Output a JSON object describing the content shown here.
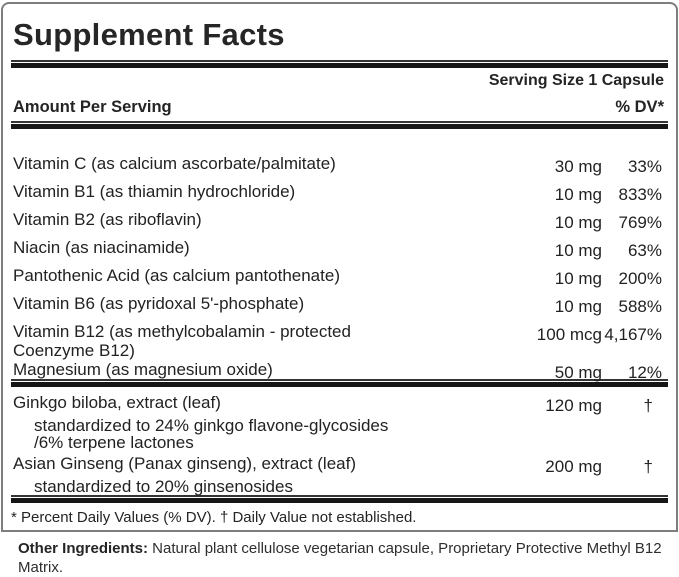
{
  "panel": {
    "title": "Supplement Facts",
    "serving_size": "Serving Size 1 Capsule",
    "amount_header": "Amount Per Serving",
    "dv_header": "% DV*",
    "rows": [
      {
        "name": "Vitamin C (as calcium ascorbate/palmitate)",
        "amount": "30 mg",
        "dv": "33%"
      },
      {
        "name": "Vitamin B1 (as thiamin hydrochloride)",
        "amount": "10 mg",
        "dv": "833%"
      },
      {
        "name": "Vitamin B2 (as riboflavin)",
        "amount": "10 mg",
        "dv": "769%"
      },
      {
        "name": "Niacin (as niacinamide)",
        "amount": "10 mg",
        "dv": "63%"
      },
      {
        "name": "Pantothenic Acid (as calcium pantothenate)",
        "amount": "10 mg",
        "dv": "200%"
      },
      {
        "name": "Vitamin B6 (as pyridoxal 5'-phosphate)",
        "amount": "10 mg",
        "dv": "588%"
      },
      {
        "name": "Vitamin B12 (as methylcobalamin - protected Coenzyme B12)",
        "amount": "100 mcg",
        "dv": "4,167%"
      },
      {
        "name": "Magnesium (as magnesium oxide)",
        "amount": "50 mg",
        "dv": "12%"
      }
    ],
    "herbal_rows": [
      {
        "name": "Ginkgo biloba, extract (leaf)",
        "amount": "120 mg",
        "dv": "†",
        "note": "standardized to 24% ginkgo flavone-glycosides /6% terpene lactones"
      },
      {
        "name": "Asian Ginseng (Panax ginseng), extract (leaf)",
        "amount": "200 mg",
        "dv": "†",
        "note": "standardized to 20% ginsenosides"
      }
    ],
    "footnote": "* Percent Daily Values (% DV). † Daily Value not established."
  },
  "other_ingredients": {
    "label": "Other Ingredients:",
    "text": " Natural plant cellulose vegetarian capsule, Proprietary Protective Methyl B12 Matrix."
  },
  "colors": {
    "text": "#222222",
    "rule": "#161616",
    "panel_border": "#7e7e7e",
    "background": "#ffffff"
  }
}
